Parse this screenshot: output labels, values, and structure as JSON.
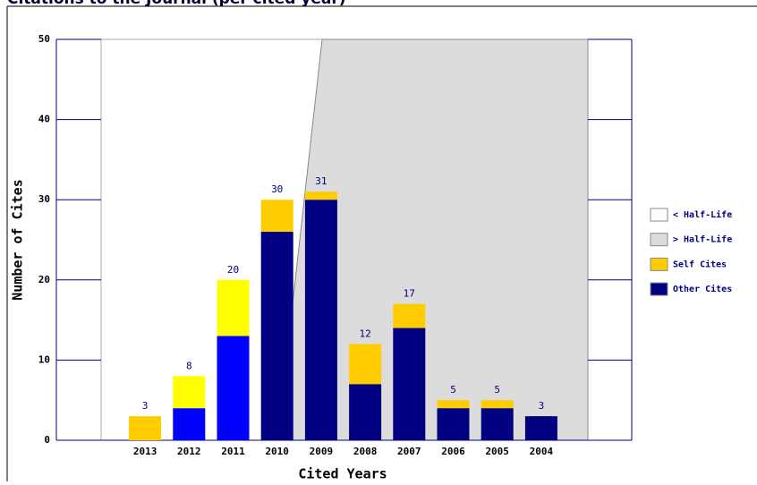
{
  "chart_data": {
    "type": "stacked-bar",
    "title": "Citations to the Journal (per cited year)",
    "xlabel": "Cited Years",
    "ylabel": "Number of Cites",
    "categories": [
      "2013",
      "2012",
      "2011",
      "2010",
      "2009",
      "2008",
      "2007",
      "2006",
      "2005",
      "2004"
    ],
    "series": [
      {
        "name": "Other Cites",
        "color": "#000080",
        "colors": [
          "#000080",
          "#0000ff",
          "#0000ff",
          "#000080",
          "#000080",
          "#000080",
          "#000080",
          "#000080",
          "#000080",
          "#000080"
        ],
        "values": [
          0,
          4,
          13,
          26,
          30,
          7,
          14,
          4,
          4,
          3
        ]
      },
      {
        "name": "Self Cites",
        "color": "#ffcc00",
        "colors": [
          "#ffcc00",
          "#ffff00",
          "#ffff00",
          "#ffcc00",
          "#ffcc00",
          "#ffcc00",
          "#ffcc00",
          "#ffcc00",
          "#ffcc00",
          "#ffcc00"
        ],
        "values": [
          3,
          4,
          7,
          4,
          1,
          5,
          3,
          1,
          1,
          0
        ]
      }
    ],
    "totals": [
      3,
      8,
      20,
      30,
      31,
      12,
      17,
      5,
      5,
      3
    ],
    "legend_extra": [
      {
        "label": "< Half-Life",
        "color": "#ffffff"
      },
      {
        "label": "> Half-Life",
        "color": "#dcdcdc"
      }
    ],
    "ylim": [
      0,
      50
    ],
    "yticks": [
      0,
      10,
      20,
      30,
      40,
      50
    ]
  }
}
